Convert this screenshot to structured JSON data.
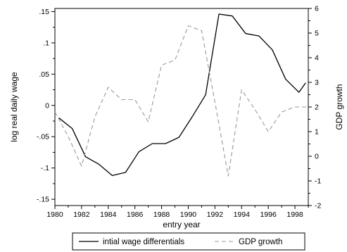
{
  "chart_data": {
    "type": "line",
    "title": "",
    "xlabel": "entry year",
    "ylabel_left": "log real daily wage",
    "ylabel_right": "GDP growth",
    "xlim": [
      1980,
      1999
    ],
    "ylim_left": [
      -0.16,
      0.155
    ],
    "ylim_right": [
      -2,
      6
    ],
    "x_ticks": [
      1980,
      1982,
      1984,
      1986,
      1988,
      1990,
      1992,
      1994,
      1996,
      1998
    ],
    "x_tick_labels": [
      "1980",
      "1982",
      "1984",
      "1986",
      "1988",
      "1990",
      "1992",
      "1994",
      "1996",
      "1998"
    ],
    "y_left_ticks": [
      -0.15,
      -0.1,
      -0.05,
      0,
      0.05,
      0.1,
      0.15
    ],
    "y_left_tick_labels": [
      "-.15",
      "-.1",
      "-.05",
      "0",
      ".05",
      ".1",
      ".15"
    ],
    "y_right_ticks": [
      -2,
      -1,
      0,
      1,
      2,
      3,
      4,
      5,
      6
    ],
    "y_right_tick_labels": [
      "-2",
      "-1",
      "0",
      "1",
      "2",
      "3",
      "4",
      "5",
      "6"
    ],
    "grid": false,
    "legend_position": "bottom",
    "series": [
      {
        "name": "intial wage differentials",
        "axis": "left",
        "style": "solid",
        "color": "#000000",
        "x": [
          1980.3,
          1981.3,
          1982.3,
          1983.3,
          1984.3,
          1985.3,
          1986.3,
          1987.3,
          1988.3,
          1989.3,
          1990.3,
          1991.3,
          1992.3,
          1993.3,
          1994.3,
          1995.3,
          1996.3,
          1997.3,
          1998.3,
          1998.8
        ],
        "values": [
          -0.02,
          -0.037,
          -0.082,
          -0.094,
          -0.112,
          -0.107,
          -0.074,
          -0.061,
          -0.061,
          -0.051,
          -0.018,
          0.017,
          0.146,
          0.143,
          0.115,
          0.111,
          0.089,
          0.042,
          0.021,
          0.036
        ]
      },
      {
        "name": "GDP growth",
        "axis": "right",
        "style": "dashed",
        "color": "#999999",
        "x": [
          1980,
          1981,
          1982,
          1983,
          1984,
          1985,
          1986,
          1987,
          1988,
          1989,
          1990,
          1991,
          1992,
          1993,
          1994,
          1995,
          1996,
          1997,
          1998,
          1999
        ],
        "values": [
          1.8,
          0.8,
          -0.4,
          1.6,
          2.8,
          2.3,
          2.3,
          1.4,
          3.7,
          3.9,
          5.3,
          5.1,
          2.2,
          -0.8,
          2.7,
          1.9,
          1.0,
          1.8,
          2.0,
          2.0
        ]
      }
    ]
  }
}
